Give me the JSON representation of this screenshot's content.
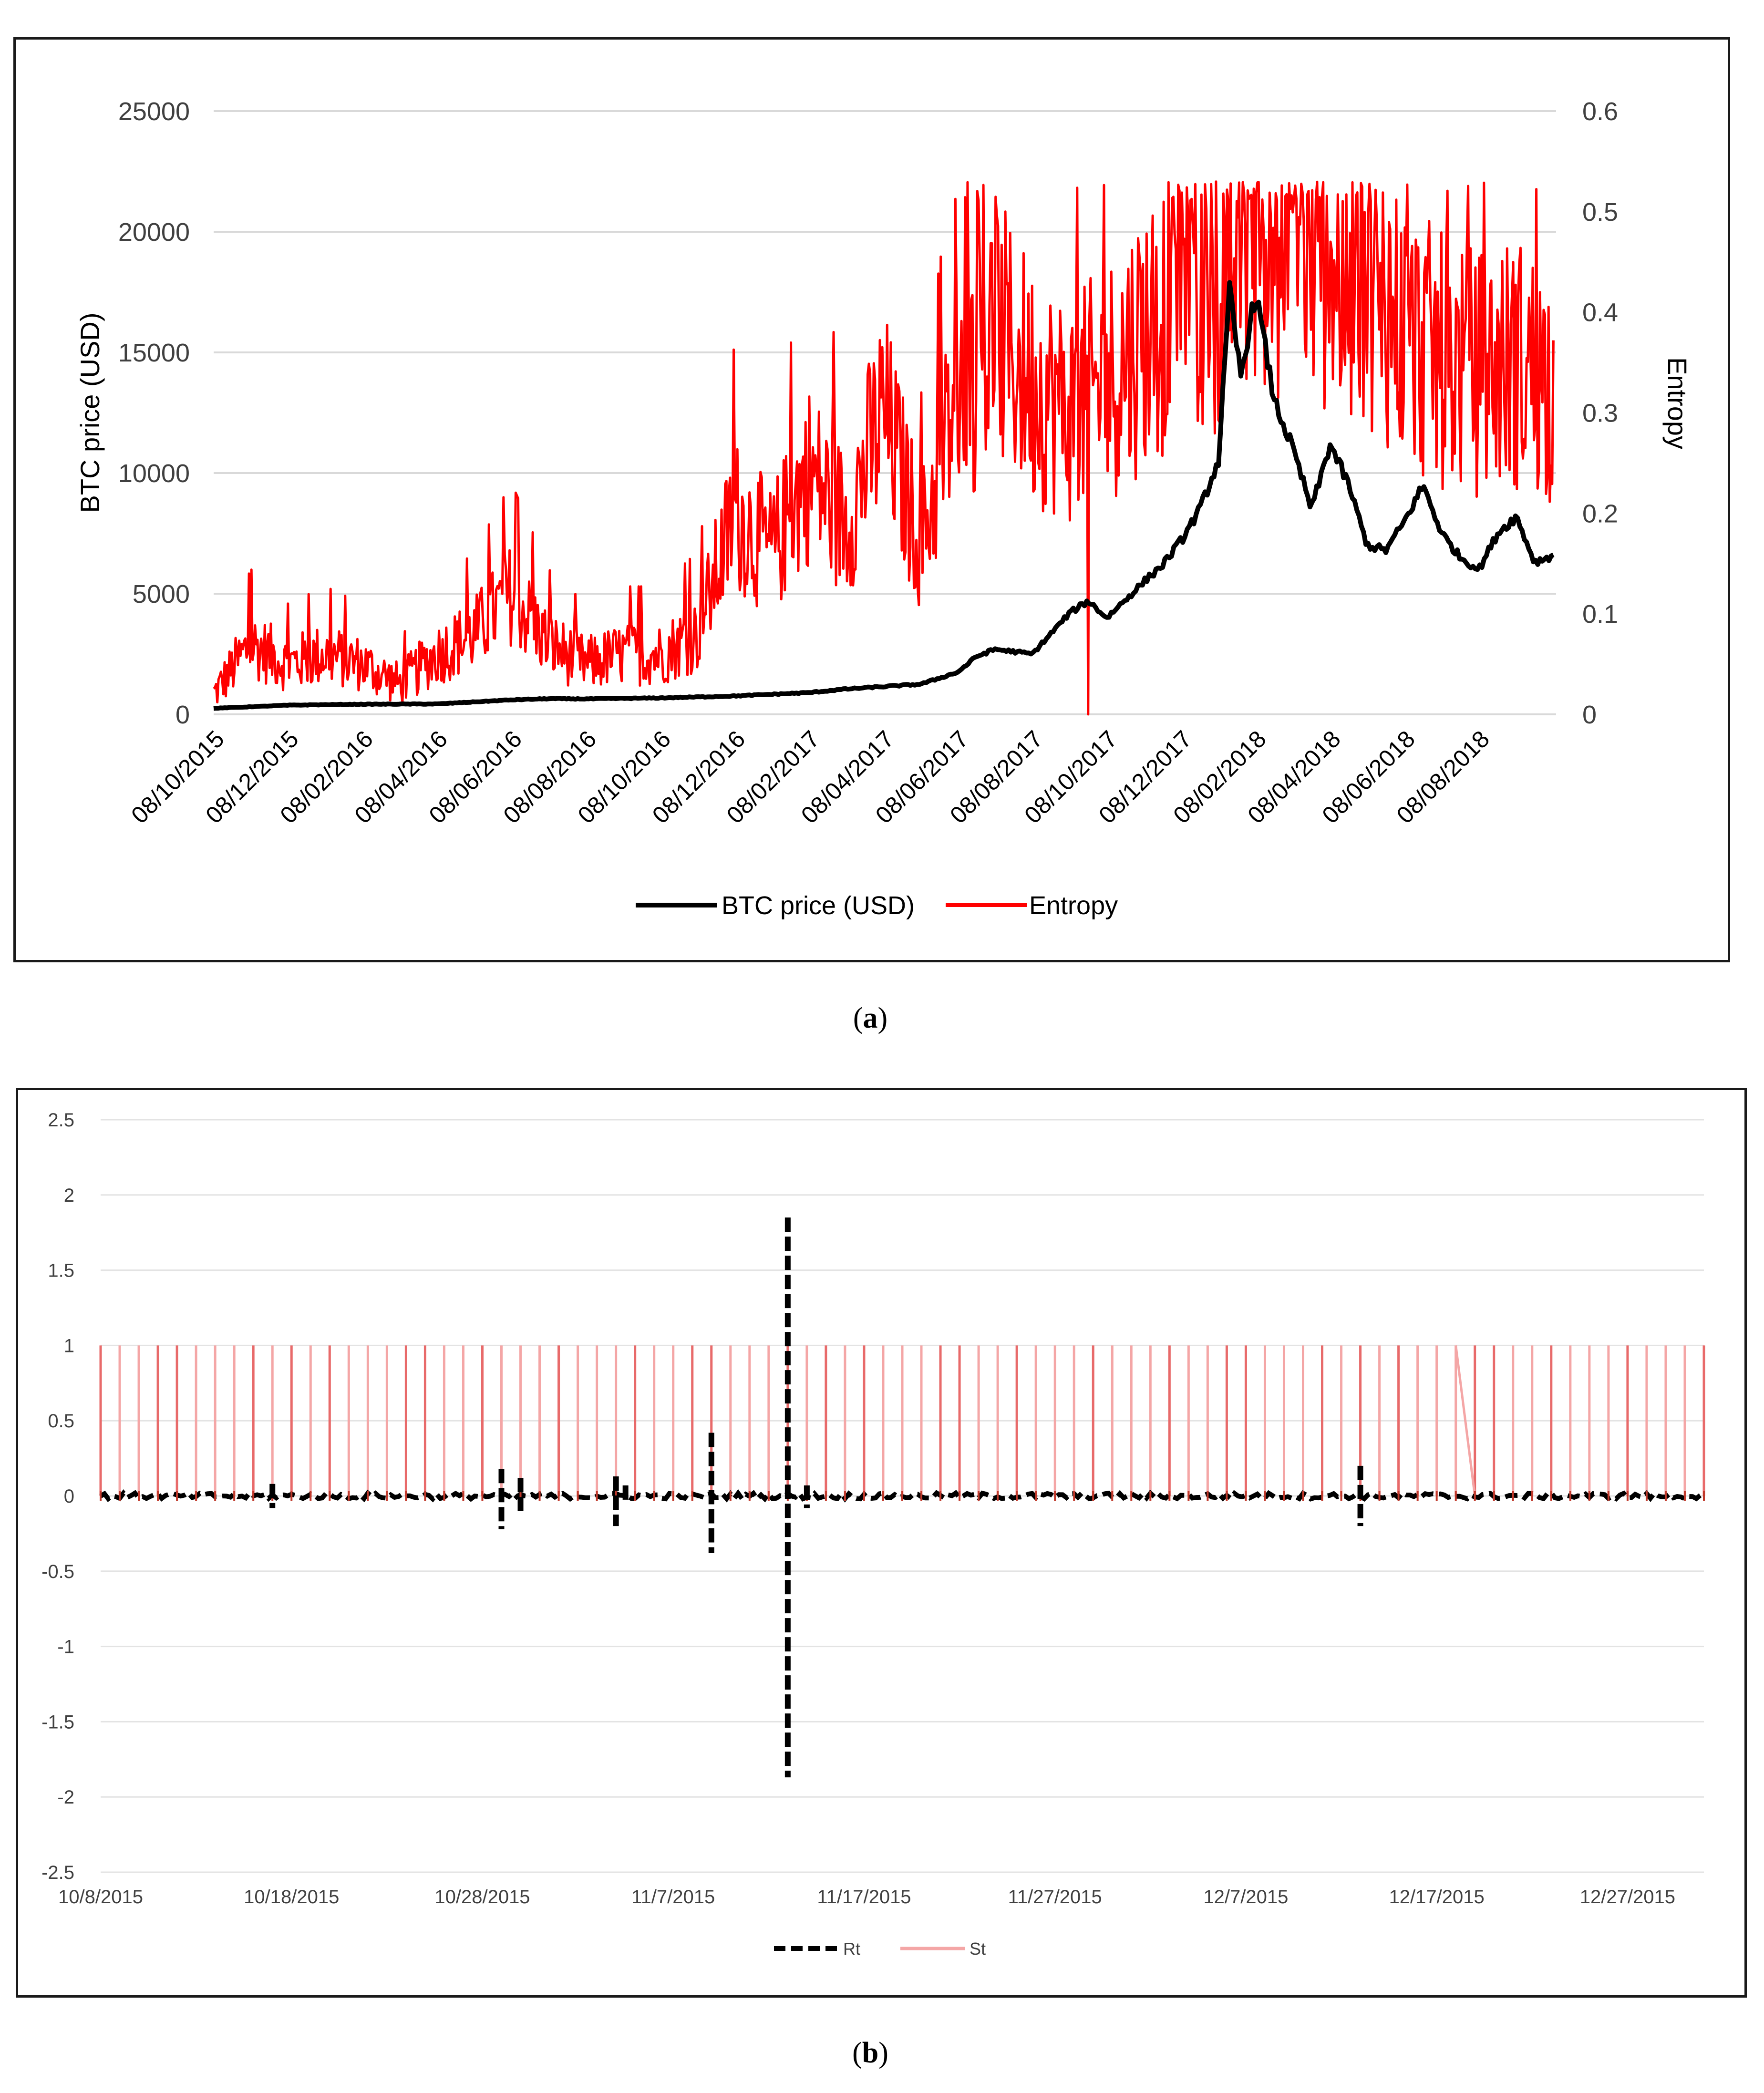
{
  "chart_data": [
    {
      "panel": "a",
      "type": "line",
      "caption": "a",
      "ylabel_left": "BTC price (USD)",
      "ylabel_right": "Entropy",
      "y_left_ticks": [
        "0",
        "5000",
        "10000",
        "15000",
        "20000",
        "25000"
      ],
      "y_left_lim": [
        0,
        25000
      ],
      "y_right_ticks": [
        "0",
        "0.1",
        "0.2",
        "0.3",
        "0.4",
        "0.5",
        "0.6"
      ],
      "y_right_lim": [
        0,
        0.6
      ],
      "x_tick_labels": [
        "08/10/2015",
        "08/12/2015",
        "08/02/2016",
        "08/04/2016",
        "08/06/2016",
        "08/08/2016",
        "08/10/2016",
        "08/12/2016",
        "08/02/2017",
        "08/04/2017",
        "08/06/2017",
        "08/08/2017",
        "08/10/2017",
        "08/12/2017",
        "08/02/2018",
        "08/04/2018",
        "08/06/2018",
        "08/08/2018"
      ],
      "grid": "horizontal",
      "legend": "bottom-center",
      "series": [
        {
          "name": "BTC price (USD)",
          "axis": "left",
          "color": "#000000",
          "x_month_index": [
            0,
            2,
            4,
            6,
            8,
            9,
            10,
            12,
            14,
            16,
            17,
            18,
            19,
            20,
            20.5,
            21,
            22,
            23,
            23.5,
            24,
            25,
            25.5,
            26,
            26.5,
            27,
            27.3,
            27.6,
            28,
            28.5,
            29,
            29.5,
            30,
            30.5,
            31,
            31.5,
            32,
            32.5,
            33,
            33.5,
            34,
            34.5,
            35,
            35.5,
            36
          ],
          "values": [
            250,
            380,
            420,
            430,
            600,
            650,
            640,
            680,
            760,
            900,
            1050,
            1150,
            1250,
            1750,
            2400,
            2700,
            2500,
            4200,
            4700,
            4000,
            5500,
            6200,
            7200,
            8500,
            10500,
            17500,
            14000,
            17500,
            13000,
            11000,
            8500,
            11200,
            9500,
            7000,
            6800,
            8000,
            9500,
            7500,
            6500,
            6000,
            7500,
            8200,
            6300,
            6600
          ]
        },
        {
          "name": "Entropy",
          "axis": "right",
          "color": "#ff0000",
          "x_month_index": [
            0,
            1,
            2,
            3,
            4,
            5,
            6,
            7,
            8,
            9,
            10,
            11,
            12,
            13,
            14,
            15,
            16,
            17,
            18,
            19,
            20,
            21,
            22,
            23,
            24,
            25,
            26,
            27,
            28,
            29,
            30,
            31,
            32,
            33,
            34,
            35,
            36
          ],
          "values": [
            0.02,
            0.07,
            0.05,
            0.06,
            0.05,
            0.03,
            0.06,
            0.08,
            0.12,
            0.07,
            0.05,
            0.06,
            0.06,
            0.08,
            0.2,
            0.16,
            0.24,
            0.19,
            0.3,
            0.17,
            0.32,
            0.38,
            0.33,
            0.3,
            0.33,
            0.38,
            0.42,
            0.44,
            0.47,
            0.49,
            0.46,
            0.45,
            0.38,
            0.35,
            0.34,
            0.35,
            0.33
          ]
        }
      ]
    },
    {
      "panel": "b",
      "type": "line",
      "caption": "b",
      "y_ticks": [
        "2.5",
        "2",
        "1.5",
        "1",
        "0.5",
        "0",
        "-0.5",
        "-1",
        "-1.5",
        "-2",
        "-2.5"
      ],
      "ylim": [
        -2.5,
        2.5
      ],
      "x_tick_labels": [
        "10/8/2015",
        "10/18/2015",
        "10/28/2015",
        "11/7/2015",
        "11/17/2015",
        "11/27/2015",
        "12/7/2015",
        "12/17/2015",
        "12/27/2015"
      ],
      "x_day_range": [
        0,
        84
      ],
      "grid": "horizontal",
      "legend": "bottom-center",
      "series": [
        {
          "name": "Rt",
          "style": "dashed",
          "color": "#000000",
          "spikes_day": [
            9,
            21,
            22,
            27,
            27.5,
            32,
            36,
            37,
            66
          ],
          "spikes_value": [
            0.08,
            0.18,
            0.12,
            0.13,
            0.07,
            0.42,
            1.85,
            0.07,
            0.2
          ],
          "spikes_min": [
            -0.08,
            -0.22,
            -0.1,
            -0.2,
            -0.05,
            -0.38,
            -1.87,
            -0.08,
            -0.2
          ]
        },
        {
          "name": "St",
          "style": "solid",
          "color": "#f4a6a6",
          "description_values": [
            0,
            1
          ],
          "period_days": 1
        }
      ]
    }
  ],
  "captions": {
    "a": "a",
    "b": "b"
  }
}
